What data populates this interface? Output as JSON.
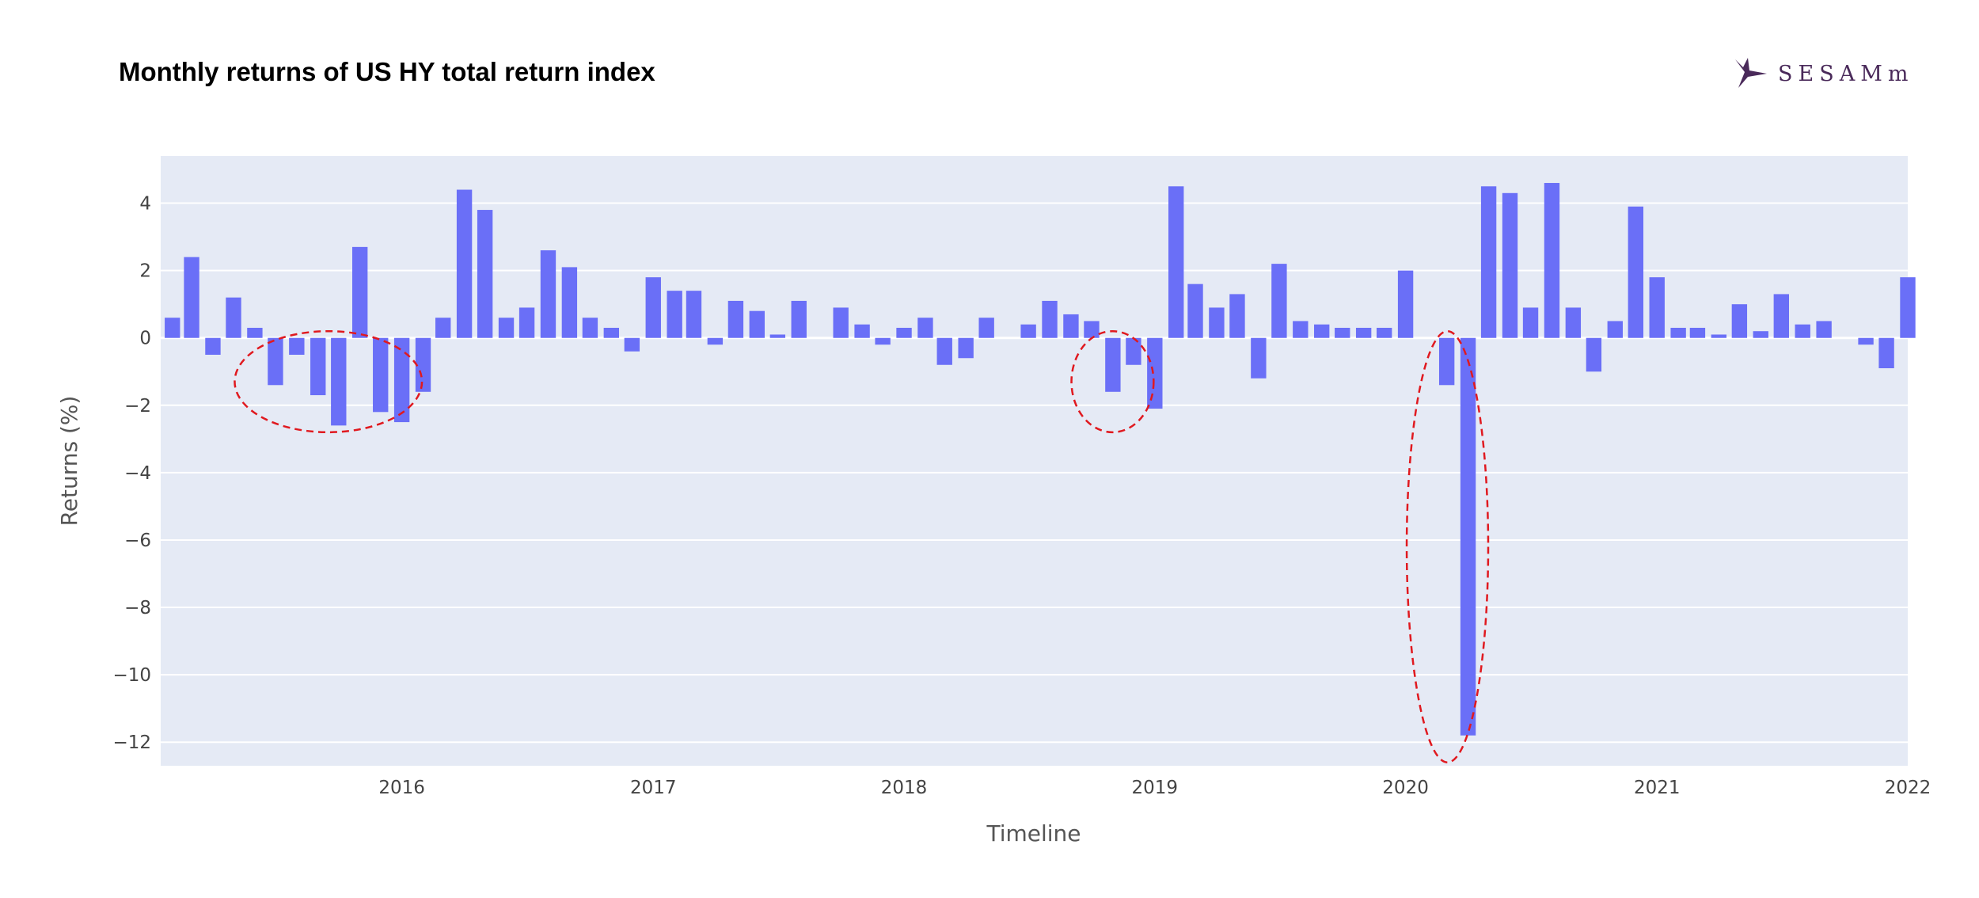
{
  "header": {
    "title": "Monthly returns of US HY total return index",
    "logo_text": "SESAMm",
    "logo_icon": "sesamm-bird-icon"
  },
  "colors": {
    "bar": "#6a6ff7",
    "plot_bg": "#e5eaf5",
    "grid": "#ffffff",
    "highlight": "#e0191f",
    "logo": "#4a2a5a"
  },
  "chart_data": {
    "type": "bar",
    "xlabel": "Timeline",
    "ylabel": "Returns (%)",
    "x_start": "2015-02",
    "xlim": [
      "2015-01-15",
      "2022-01-01"
    ],
    "ylim": [
      -12.7,
      5.4
    ],
    "x_ticks": [
      "2016",
      "2017",
      "2018",
      "2019",
      "2020",
      "2021",
      "2022"
    ],
    "y_ticks": [
      4,
      2,
      0,
      -2,
      -4,
      -6,
      -8,
      -10,
      -12
    ],
    "y_tick_labels": [
      "4",
      "2",
      "0",
      "−2",
      "−4",
      "−6",
      "−8",
      "−10",
      "−12"
    ],
    "grid": true,
    "legend": "none",
    "series": [
      {
        "values": [
          0.6,
          2.4,
          -0.5,
          1.2,
          0.3,
          -1.4,
          -0.5,
          -1.7,
          -2.6,
          2.7,
          -2.2,
          -2.5,
          -1.6,
          0.6,
          4.4,
          3.8,
          0.6,
          0.9,
          2.6,
          2.1,
          0.6,
          0.3,
          -0.4,
          1.8,
          1.4,
          1.4,
          -0.2,
          1.1,
          0.8,
          0.1,
          1.1,
          0,
          0.9,
          0.4,
          -0.2,
          0.3,
          0.6,
          -0.8,
          -0.6,
          0.6,
          0,
          0.4,
          1.1,
          0.7,
          0.5,
          -1.6,
          -0.8,
          -2.1,
          4.5,
          1.6,
          0.9,
          1.3,
          -1.2,
          2.2,
          0.5,
          0.4,
          0.3,
          0.3,
          0.3,
          2.0,
          0,
          -1.4,
          -11.8,
          4.5,
          4.3,
          0.9,
          4.6,
          0.9,
          -1.0,
          0.5,
          3.9,
          1.8,
          0.3,
          0.3,
          0.1,
          1.0,
          0.2,
          1.3,
          0.4,
          0.5,
          0,
          -0.2,
          -0.9,
          1.8
        ]
      }
    ],
    "annotations": [
      {
        "type": "dashed-ellipse",
        "from": "2015-06",
        "to": "2016-01",
        "ylim": [
          -2.8,
          0.2
        ]
      },
      {
        "type": "dashed-ellipse",
        "from": "2018-10",
        "to": "2018-12",
        "ylim": [
          -2.8,
          0.2
        ]
      },
      {
        "type": "dashed-ellipse",
        "from": "2020-02",
        "to": "2020-04",
        "ylim": [
          -12.6,
          0.2
        ]
      }
    ]
  }
}
